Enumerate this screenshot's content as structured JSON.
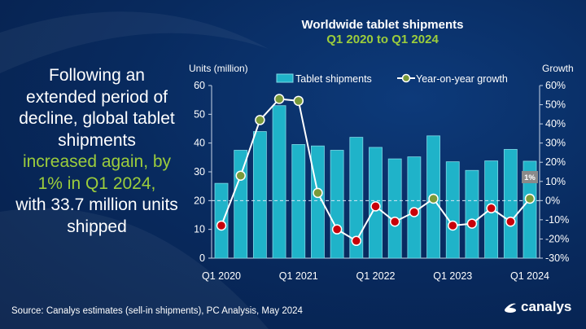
{
  "headline": {
    "line1": "Following an extended period of decline, global tablet shipments",
    "highlight": "increased again, by 1% in Q1 2024,",
    "line2": "with 33.7 million units shipped"
  },
  "source": "Source: Canalys estimates (sell-in shipments), PC Analysis, May 2024",
  "logo": "canalys",
  "colors": {
    "bar": "#1fb3c9",
    "positive": "#7a9a3a",
    "negative": "#c8000a",
    "line": "#ffffff",
    "accent_text": "#9ccd3c"
  },
  "chart_data": {
    "type": "bar+line",
    "title": "Worldwide tablet shipments",
    "subtitle": "Q1 2020 to Q1 2024",
    "ylabel": "Units (million)",
    "y2label": "Growth",
    "ylim": [
      0,
      60
    ],
    "yticks": [
      "0",
      "10",
      "20",
      "30",
      "40",
      "50",
      "60"
    ],
    "y2lim": [
      -30,
      60
    ],
    "y2ticks": [
      "-30%",
      "-20%",
      "-10%",
      "0%",
      "10%",
      "20%",
      "30%",
      "40%",
      "50%",
      "60%"
    ],
    "categories": [
      "Q1 2020",
      "Q2 2020",
      "Q3 2020",
      "Q4 2020",
      "Q1 2021",
      "Q2 2021",
      "Q3 2021",
      "Q4 2021",
      "Q1 2022",
      "Q2 2022",
      "Q3 2022",
      "Q4 2022",
      "Q1 2023",
      "Q2 2023",
      "Q3 2023",
      "Q4 2023",
      "Q1 2024"
    ],
    "xtick_labels": [
      {
        "i": 0,
        "label": "Q1 2020"
      },
      {
        "i": 4,
        "label": "Q1 2021"
      },
      {
        "i": 8,
        "label": "Q1 2022"
      },
      {
        "i": 12,
        "label": "Q1 2023"
      },
      {
        "i": 16,
        "label": "Q1 2024"
      }
    ],
    "series": [
      {
        "name": "Tablet shipments",
        "type": "bar",
        "axis": "left",
        "values": [
          26,
          37.5,
          44,
          53,
          39.5,
          39,
          37.5,
          42,
          38.5,
          34.5,
          35.2,
          42.5,
          33.5,
          30.5,
          33.8,
          37.8,
          33.7
        ]
      },
      {
        "name": "Year-on-year growth",
        "type": "line",
        "axis": "right",
        "values": [
          -13,
          13,
          42,
          53,
          52,
          4,
          -15,
          -21,
          -3,
          -11,
          -6,
          1,
          -13,
          -12,
          -4,
          -11,
          1
        ]
      }
    ],
    "annotation": {
      "i": 16,
      "label": "1%"
    },
    "reference_line": {
      "axis": "left",
      "value": 20,
      "style": "dashed"
    },
    "legend": "top"
  }
}
